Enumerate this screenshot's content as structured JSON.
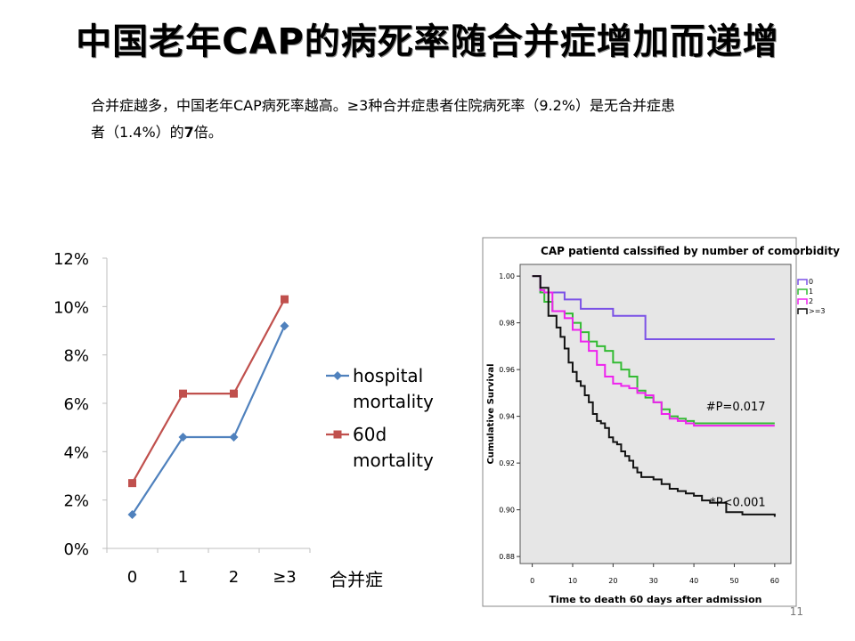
{
  "title": "中国老年CAP的病死率随合并症增加而递增",
  "body": {
    "line1": "合并症越多，中国老年CAP病死率越高。≥3种合并症患者住院病死率（9.2%）是无合并症患",
    "line2_pre": "者（1.4%）的",
    "line2_bold": "7",
    "line2_post": "倍。"
  },
  "page_number": "11",
  "chart_data": [
    {
      "type": "line",
      "categories": [
        "0",
        "1",
        "2",
        "≥3"
      ],
      "xlabel": "合并症",
      "yticks": [
        "0%",
        "2%",
        "4%",
        "6%",
        "8%",
        "10%",
        "12%"
      ],
      "ylim": [
        0,
        12
      ],
      "legend_position": "right",
      "series": [
        {
          "name": "hospital mortality",
          "name_lines": [
            "hospital",
            "mortality"
          ],
          "values": [
            1.4,
            4.6,
            4.6,
            9.2
          ],
          "color": "#4f81bd",
          "marker": "diamond"
        },
        {
          "name": "60d mortality",
          "name_lines": [
            "60d",
            "mortality"
          ],
          "values": [
            2.7,
            6.4,
            6.4,
            10.3
          ],
          "color": "#c0504d",
          "marker": "square"
        }
      ]
    },
    {
      "type": "line",
      "title": "CAP patientd calssified by number of comorbidity",
      "xlabel": "Time to death 60 days after admission",
      "ylabel": "Cumulative Survival",
      "xticks": [
        "0",
        "10",
        "20",
        "30",
        "40",
        "50",
        "60"
      ],
      "yticks": [
        "0.88",
        "0.90",
        "0.92",
        "0.94",
        "0.96",
        "0.98",
        "1.00"
      ],
      "xlim": [
        -3,
        64
      ],
      "ylim": [
        0.877,
        1.005
      ],
      "legend_position": "right",
      "background": "#e6e6e6",
      "series": [
        {
          "name": "0",
          "color": "#7b52e6",
          "x": [
            0,
            2,
            4,
            8,
            12,
            20,
            28,
            60
          ],
          "y": [
            1.0,
            0.993,
            0.993,
            0.99,
            0.986,
            0.983,
            0.973,
            0.973
          ]
        },
        {
          "name": "1",
          "color": "#33bb33",
          "x": [
            0,
            2,
            3,
            5,
            8,
            10,
            12,
            14,
            16,
            18,
            20,
            22,
            24,
            26,
            28,
            30,
            32,
            34,
            36,
            38,
            40,
            60
          ],
          "y": [
            1.0,
            0.993,
            0.989,
            0.985,
            0.984,
            0.98,
            0.976,
            0.972,
            0.97,
            0.968,
            0.963,
            0.96,
            0.957,
            0.951,
            0.948,
            0.946,
            0.943,
            0.94,
            0.939,
            0.938,
            0.937,
            0.937
          ]
        },
        {
          "name": "2",
          "color": "#ee22ee",
          "x": [
            0,
            2,
            3,
            5,
            8,
            10,
            12,
            14,
            16,
            18,
            20,
            22,
            24,
            26,
            28,
            30,
            32,
            34,
            36,
            38,
            40,
            60
          ],
          "y": [
            1.0,
            0.994,
            0.993,
            0.985,
            0.982,
            0.977,
            0.972,
            0.968,
            0.962,
            0.957,
            0.954,
            0.953,
            0.952,
            0.95,
            0.949,
            0.946,
            0.941,
            0.939,
            0.938,
            0.937,
            0.936,
            0.936
          ]
        },
        {
          "name": ">=3",
          "color": "#111111",
          "x": [
            0,
            2,
            4,
            6,
            7,
            8,
            9,
            10,
            11,
            12,
            13,
            14,
            15,
            16,
            17,
            18,
            19,
            20,
            21,
            22,
            23,
            24,
            25,
            26,
            27,
            28,
            30,
            32,
            34,
            36,
            38,
            40,
            42,
            44,
            48,
            52,
            60
          ],
          "y": [
            1.0,
            0.995,
            0.983,
            0.978,
            0.974,
            0.969,
            0.963,
            0.959,
            0.955,
            0.953,
            0.949,
            0.946,
            0.941,
            0.938,
            0.937,
            0.935,
            0.931,
            0.929,
            0.928,
            0.925,
            0.923,
            0.921,
            0.918,
            0.916,
            0.914,
            0.914,
            0.913,
            0.911,
            0.909,
            0.908,
            0.907,
            0.906,
            0.904,
            0.903,
            0.899,
            0.898,
            0.897
          ]
        }
      ],
      "annotations": [
        {
          "text": "#P=0.017",
          "x": 43,
          "y": 0.9425
        },
        {
          "text": "*P<0.001",
          "x": 44,
          "y": 0.9015
        }
      ]
    }
  ]
}
